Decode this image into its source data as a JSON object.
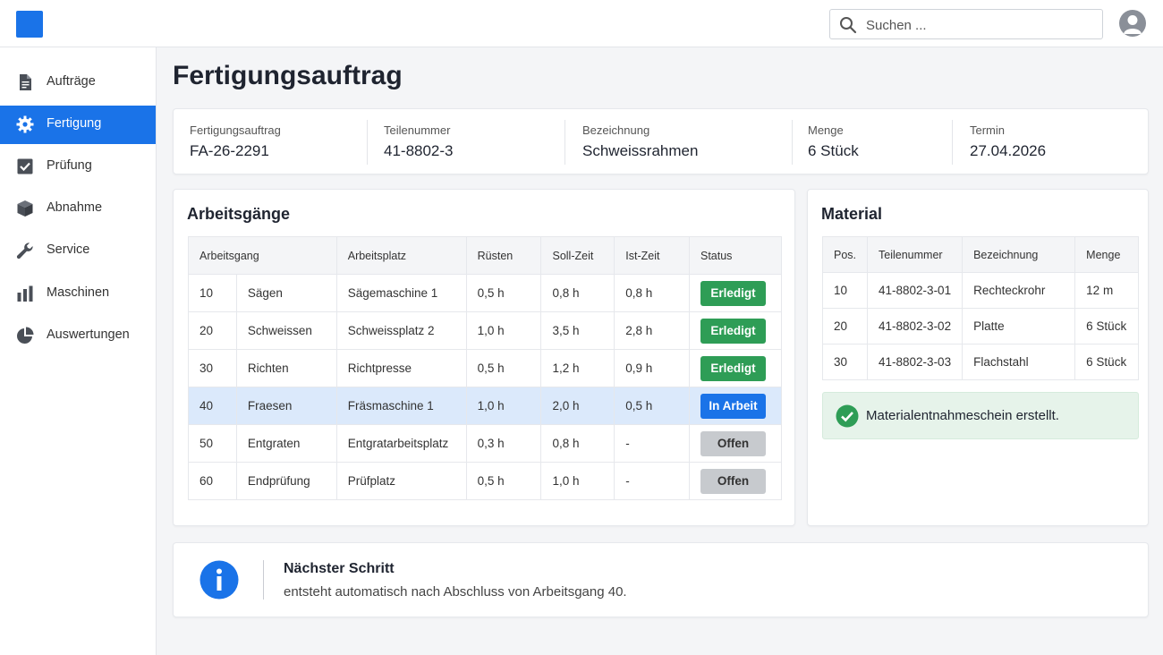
{
  "header": {
    "search_placeholder": "Suchen ...",
    "accent_color": "#1a73e8"
  },
  "sidebar": {
    "items": [
      {
        "label": "Aufträge",
        "icon": "document-icon",
        "active": false
      },
      {
        "label": "Fertigung",
        "icon": "gear-icon",
        "active": true
      },
      {
        "label": "Prüfung",
        "icon": "checkbox-icon",
        "active": false
      },
      {
        "label": "Abnahme",
        "icon": "box-icon",
        "active": false
      },
      {
        "label": "Service",
        "icon": "wrench-icon",
        "active": false
      },
      {
        "label": "Maschinen",
        "icon": "bar-chart-icon",
        "active": false
      },
      {
        "label": "Auswertungen",
        "icon": "pie-chart-icon",
        "active": false
      }
    ]
  },
  "page": {
    "title": "Fertigungsauftrag"
  },
  "order_info": {
    "fields": [
      {
        "label": "Fertigungsauftrag",
        "value": "FA-26-2291"
      },
      {
        "label": "Teilenummer",
        "value": "41-8802-3"
      },
      {
        "label": "Bezeichnung",
        "value": "Schweissrahmen"
      },
      {
        "label": "Menge",
        "value": "6 Stück"
      },
      {
        "label": "Termin",
        "value": "27.04.2026"
      }
    ]
  },
  "operations": {
    "title": "Arbeitsgänge",
    "columns": [
      "Arbeitsgang",
      "Arbeitsplatz",
      "Rüsten",
      "Soll-Zeit",
      "Ist-Zeit",
      "Status"
    ],
    "rows": [
      {
        "nr": "10",
        "name": "Sägen",
        "workplace": "Sägemaschine 1",
        "setup": "0,5 h",
        "target": "0,8 h",
        "actual": "0,8 h",
        "status": "Erledigt",
        "status_type": "done"
      },
      {
        "nr": "20",
        "name": "Schweissen",
        "workplace": "Schweissplatz 2",
        "setup": "1,0 h",
        "target": "3,5 h",
        "actual": "2,8 h",
        "status": "Erledigt",
        "status_type": "done"
      },
      {
        "nr": "30",
        "name": "Richten",
        "workplace": "Richtpresse",
        "setup": "0,5 h",
        "target": "1,2 h",
        "actual": "0,9 h",
        "status": "Erledigt",
        "status_type": "done"
      },
      {
        "nr": "40",
        "name": "Fraesen",
        "workplace": "Fräsmaschine 1",
        "setup": "1,0 h",
        "target": "2,0 h",
        "actual": "0,5 h",
        "status": "In Arbeit",
        "status_type": "work"
      },
      {
        "nr": "50",
        "name": "Entgraten",
        "workplace": "Entgratarbeitsplatz",
        "setup": "0,3 h",
        "target": "0,8 h",
        "actual": "-",
        "status": "Offen",
        "status_type": "open"
      },
      {
        "nr": "60",
        "name": "Endprüfung",
        "workplace": "Prüfplatz",
        "setup": "0,5 h",
        "target": "1,0 h",
        "actual": "-",
        "status": "Offen",
        "status_type": "open"
      }
    ]
  },
  "material": {
    "title": "Material",
    "columns": [
      "Pos.",
      "Teilenummer",
      "Bezeichnung",
      "Menge"
    ],
    "rows": [
      {
        "pos": "10",
        "part": "41-8802-3-01",
        "name": "Rechteckrohr",
        "qty": "12 m"
      },
      {
        "pos": "20",
        "part": "41-8802-3-02",
        "name": "Platte",
        "qty": "6 Stück"
      },
      {
        "pos": "30",
        "part": "41-8802-3-03",
        "name": "Flachstahl",
        "qty": "6 Stück"
      }
    ],
    "success_message": "Materialentnahmeschein erstellt."
  },
  "next_step": {
    "title": "Nächster Schritt",
    "text": "entsteht automatisch nach Abschluss von Arbeitsgang 40."
  },
  "colors": {
    "done": "#2e9d56",
    "work": "#1a73e8",
    "open": "#c7cace",
    "highlight_row": "#dbe9fb"
  }
}
